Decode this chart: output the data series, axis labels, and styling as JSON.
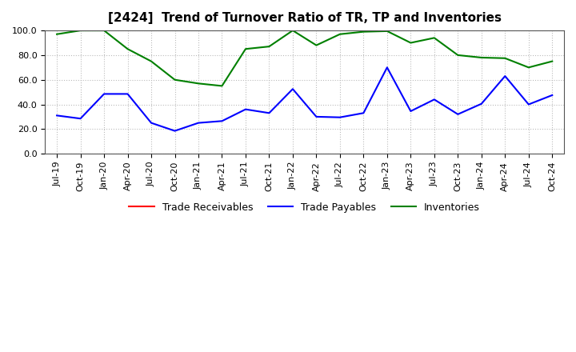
{
  "title": "[2424]  Trend of Turnover Ratio of TR, TP and Inventories",
  "ylim": [
    0.0,
    100.0
  ],
  "yticks": [
    0.0,
    20.0,
    40.0,
    60.0,
    80.0,
    100.0
  ],
  "x_labels": [
    "Jul-19",
    "Oct-19",
    "Jan-20",
    "Apr-20",
    "Jul-20",
    "Oct-20",
    "Jan-21",
    "Apr-21",
    "Jul-21",
    "Oct-21",
    "Jan-22",
    "Apr-22",
    "Jul-22",
    "Oct-22",
    "Jan-23",
    "Apr-23",
    "Jul-23",
    "Oct-23",
    "Jan-24",
    "Apr-24",
    "Jul-24",
    "Oct-24"
  ],
  "trade_receivables": [
    null,
    null,
    null,
    null,
    null,
    null,
    null,
    null,
    null,
    null,
    null,
    null,
    null,
    null,
    null,
    null,
    null,
    null,
    null,
    null,
    null,
    null
  ],
  "trade_payables": [
    31.0,
    28.5,
    48.5,
    48.5,
    25.0,
    18.5,
    25.0,
    26.5,
    36.0,
    33.0,
    52.5,
    30.0,
    29.5,
    33.0,
    70.0,
    34.5,
    44.0,
    32.0,
    40.5,
    63.0,
    40.0,
    47.5
  ],
  "inventories": [
    97.0,
    100.0,
    100.0,
    85.0,
    75.0,
    60.0,
    57.0,
    55.0,
    85.0,
    87.0,
    100.0,
    88.0,
    97.0,
    99.0,
    99.5,
    90.0,
    94.0,
    80.0,
    78.0,
    77.5,
    70.0,
    75.0
  ],
  "tr_color": "#ff0000",
  "tp_color": "#0000ff",
  "inv_color": "#008000",
  "background_color": "#ffffff",
  "grid_color": "#bbbbbb",
  "title_fontsize": 11,
  "legend_fontsize": 9,
  "tick_fontsize": 8
}
